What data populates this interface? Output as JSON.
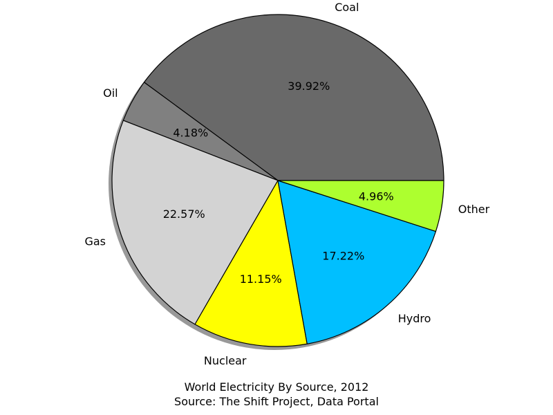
{
  "chart_data": {
    "type": "pie",
    "title": "World Electricity By Source, 2012",
    "subtitle": "Source: The Shift Project, Data Portal",
    "start_angle_deg": 0,
    "direction": "counterclockwise",
    "shadow": true,
    "slices": [
      {
        "label": "Coal",
        "value": 39.92,
        "pct_label": "39.92%",
        "color": "#696969"
      },
      {
        "label": "Oil",
        "value": 4.18,
        "pct_label": "4.18%",
        "color": "#808080"
      },
      {
        "label": "Gas",
        "value": 22.57,
        "pct_label": "22.57%",
        "color": "#d3d3d3"
      },
      {
        "label": "Nuclear",
        "value": 11.15,
        "pct_label": "11.15%",
        "color": "#ffff00"
      },
      {
        "label": "Hydro",
        "value": 17.22,
        "pct_label": "17.22%",
        "color": "#00bfff"
      },
      {
        "label": "Other",
        "value": 4.96,
        "pct_label": "4.96%",
        "color": "#adff2f"
      }
    ]
  }
}
